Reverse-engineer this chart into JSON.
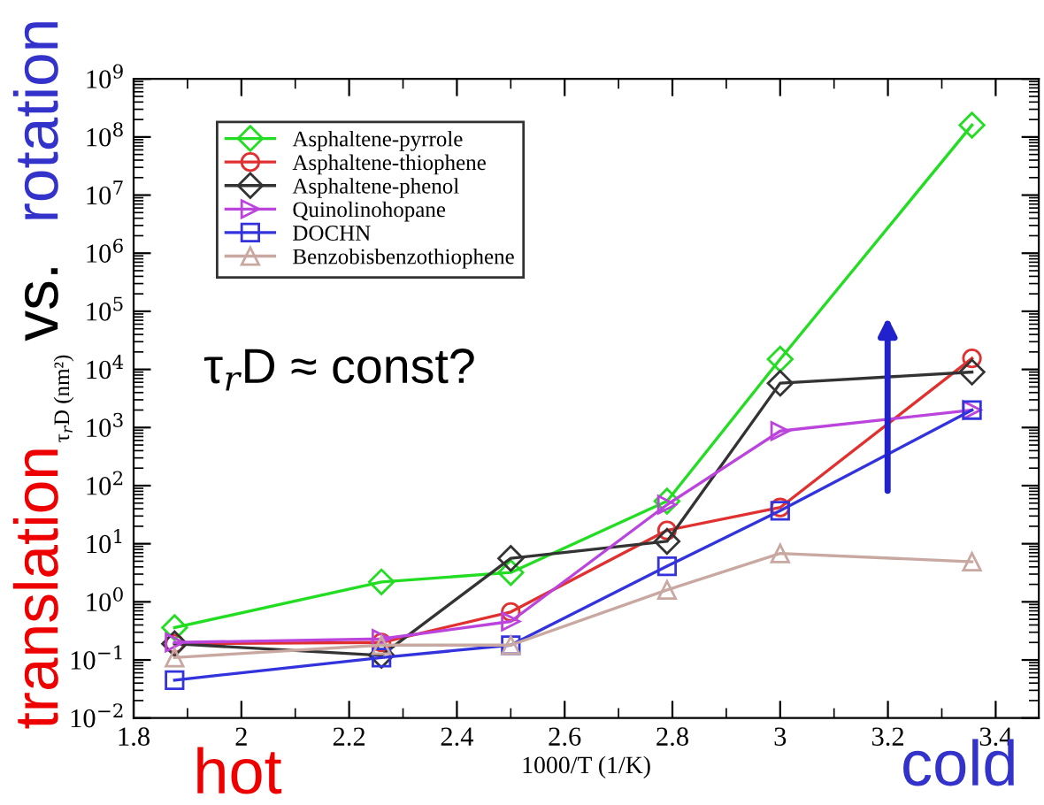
{
  "chart_data": {
    "type": "line",
    "xlabel": "1000/T (1/K)",
    "ylabel": "τ$_{r}$D (nm²)",
    "annotations": [
      "τ$_{r}$D ≈ const?",
      "translation",
      "vs.",
      "rotation",
      "hot",
      "cold"
    ],
    "log": "y",
    "xlim": [
      1.8,
      3.48
    ],
    "xticks": [
      1.8,
      2,
      2.2,
      2.4,
      2.6,
      2.8,
      3,
      3.2,
      3.4
    ],
    "ylim": [
      0.01,
      1000000000
    ],
    "yticks": [
      {
        "value": 0.01,
        "label": "10$^{−2}$"
      },
      {
        "value": 0.1,
        "label": "10$^{−1}$"
      },
      {
        "value": 1,
        "label": "10$^{0}$"
      },
      {
        "value": 10,
        "label": "10$^{1}$"
      },
      {
        "value": 100,
        "label": "10$^{2}$"
      },
      {
        "value": 1000,
        "label": "10$^{3}$"
      },
      {
        "value": 10000,
        "label": "10$^{4}$"
      },
      {
        "value": 100000,
        "label": "10$^{5}$"
      },
      {
        "value": 1000000,
        "label": "10$^{6}$"
      },
      {
        "value": 10000000,
        "label": "10$^{7}$"
      },
      {
        "value": 100000000,
        "label": "10$^{8}$"
      },
      {
        "value": 1000000000,
        "label": "10$^{9}$"
      }
    ],
    "x": [
      1.876,
      2.26,
      2.5,
      2.79,
      3.0,
      3.356
    ],
    "grid": false,
    "legend": "top left",
    "line_style": "solid",
    "series": [
      {
        "name": "Asphaltene-pyrrole",
        "color": "#22dd22",
        "marker": "diamond",
        "values": [
          0.36,
          2.2,
          3.2,
          54,
          15000,
          160000000
        ]
      },
      {
        "name": "Asphaltene-thiophene",
        "color": "#e03030",
        "marker": "circle",
        "values": [
          0.19,
          0.2,
          0.67,
          17,
          42,
          15500
        ]
      },
      {
        "name": "Asphaltene-phenol",
        "color": "#333333",
        "marker": "diamond",
        "values": [
          0.19,
          0.12,
          5.6,
          11,
          5800,
          9000
        ]
      },
      {
        "name": "Quinolinohopane",
        "color": "#bb44dd",
        "marker": "triangle right",
        "values": [
          0.2,
          0.23,
          0.46,
          47,
          870,
          2000
        ]
      },
      {
        "name": "DOCHN",
        "color": "#3333dd",
        "marker": "square",
        "values": [
          0.045,
          0.11,
          0.18,
          4.1,
          37,
          2000
        ]
      },
      {
        "name": "Benzobisbenzothiophene",
        "color": "#c8a8a0",
        "marker": "triangle",
        "values": [
          0.11,
          0.18,
          0.18,
          1.6,
          6.8,
          4.9
        ]
      }
    ]
  }
}
